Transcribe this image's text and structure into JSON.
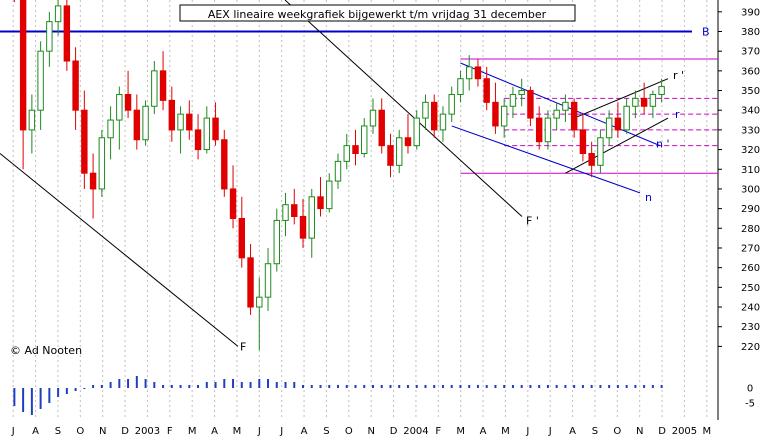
{
  "chart_data": {
    "type": "candlestick",
    "title": "AEX lineaire weekgrafiek bijgewerkt t/m vrijdag 31 december",
    "watermark": "© Ad Nooten",
    "colors": {
      "up": "#1f8a1f",
      "down": "#e00000",
      "background": "#ffffff",
      "grid": "#bfbfbf",
      "level_b": "#0000cc",
      "channel": "#0000cc",
      "magenta": "#cc00cc",
      "trend": "#000000",
      "volume": "#1f3fbf"
    },
    "y_axis": {
      "side": "right",
      "ylim": [
        208,
        396
      ],
      "ticks": [
        220,
        230,
        240,
        250,
        260,
        270,
        280,
        290,
        300,
        310,
        320,
        330,
        340,
        350,
        360,
        370,
        380,
        390
      ]
    },
    "x_axis": {
      "labels": [
        "J",
        "A",
        "S",
        "O",
        "N",
        "D",
        "2003",
        "F",
        "M",
        "A",
        "M",
        "J",
        "J",
        "A",
        "S",
        "O",
        "N",
        "D",
        "2004",
        "F",
        "M",
        "A",
        "M",
        "J",
        "J",
        "A",
        "S",
        "O",
        "N",
        "D",
        "2005",
        "M"
      ]
    },
    "candles": [
      {
        "o": 410,
        "h": 418,
        "l": 395,
        "c": 400
      },
      {
        "o": 400,
        "h": 404,
        "l": 310,
        "c": 330
      },
      {
        "o": 330,
        "h": 348,
        "l": 318,
        "c": 340
      },
      {
        "o": 340,
        "h": 375,
        "l": 330,
        "c": 370
      },
      {
        "o": 370,
        "h": 390,
        "l": 362,
        "c": 385
      },
      {
        "o": 385,
        "h": 397,
        "l": 378,
        "c": 393
      },
      {
        "o": 393,
        "h": 398,
        "l": 360,
        "c": 365
      },
      {
        "o": 365,
        "h": 372,
        "l": 330,
        "c": 340
      },
      {
        "o": 340,
        "h": 350,
        "l": 300,
        "c": 308
      },
      {
        "o": 308,
        "h": 318,
        "l": 285,
        "c": 300
      },
      {
        "o": 300,
        "h": 330,
        "l": 296,
        "c": 326
      },
      {
        "o": 326,
        "h": 342,
        "l": 315,
        "c": 335
      },
      {
        "o": 335,
        "h": 352,
        "l": 320,
        "c": 348
      },
      {
        "o": 348,
        "h": 360,
        "l": 336,
        "c": 340
      },
      {
        "o": 340,
        "h": 348,
        "l": 320,
        "c": 325
      },
      {
        "o": 325,
        "h": 345,
        "l": 322,
        "c": 342
      },
      {
        "o": 342,
        "h": 365,
        "l": 338,
        "c": 360
      },
      {
        "o": 360,
        "h": 370,
        "l": 340,
        "c": 345
      },
      {
        "o": 345,
        "h": 352,
        "l": 324,
        "c": 330
      },
      {
        "o": 330,
        "h": 342,
        "l": 318,
        "c": 338
      },
      {
        "o": 338,
        "h": 345,
        "l": 325,
        "c": 330
      },
      {
        "o": 330,
        "h": 338,
        "l": 315,
        "c": 320
      },
      {
        "o": 320,
        "h": 342,
        "l": 318,
        "c": 336
      },
      {
        "o": 336,
        "h": 344,
        "l": 322,
        "c": 325
      },
      {
        "o": 325,
        "h": 330,
        "l": 296,
        "c": 300
      },
      {
        "o": 300,
        "h": 312,
        "l": 280,
        "c": 285
      },
      {
        "o": 285,
        "h": 296,
        "l": 260,
        "c": 265
      },
      {
        "o": 265,
        "h": 272,
        "l": 236,
        "c": 240
      },
      {
        "o": 240,
        "h": 255,
        "l": 218,
        "c": 245
      },
      {
        "o": 245,
        "h": 270,
        "l": 238,
        "c": 262
      },
      {
        "o": 262,
        "h": 290,
        "l": 258,
        "c": 284
      },
      {
        "o": 284,
        "h": 298,
        "l": 276,
        "c": 292
      },
      {
        "o": 292,
        "h": 300,
        "l": 282,
        "c": 286
      },
      {
        "o": 286,
        "h": 295,
        "l": 270,
        "c": 275
      },
      {
        "o": 275,
        "h": 300,
        "l": 265,
        "c": 296
      },
      {
        "o": 296,
        "h": 306,
        "l": 286,
        "c": 290
      },
      {
        "o": 290,
        "h": 308,
        "l": 288,
        "c": 304
      },
      {
        "o": 304,
        "h": 318,
        "l": 300,
        "c": 314
      },
      {
        "o": 314,
        "h": 328,
        "l": 310,
        "c": 322
      },
      {
        "o": 322,
        "h": 330,
        "l": 312,
        "c": 318
      },
      {
        "o": 318,
        "h": 336,
        "l": 316,
        "c": 332
      },
      {
        "o": 332,
        "h": 346,
        "l": 328,
        "c": 340
      },
      {
        "o": 340,
        "h": 346,
        "l": 318,
        "c": 322
      },
      {
        "o": 322,
        "h": 328,
        "l": 306,
        "c": 312
      },
      {
        "o": 312,
        "h": 330,
        "l": 308,
        "c": 326
      },
      {
        "o": 326,
        "h": 338,
        "l": 318,
        "c": 322
      },
      {
        "o": 322,
        "h": 340,
        "l": 320,
        "c": 336
      },
      {
        "o": 336,
        "h": 348,
        "l": 330,
        "c": 344
      },
      {
        "o": 344,
        "h": 348,
        "l": 326,
        "c": 330
      },
      {
        "o": 330,
        "h": 342,
        "l": 324,
        "c": 338
      },
      {
        "o": 338,
        "h": 352,
        "l": 334,
        "c": 348
      },
      {
        "o": 348,
        "h": 360,
        "l": 344,
        "c": 356
      },
      {
        "o": 356,
        "h": 368,
        "l": 350,
        "c": 362
      },
      {
        "o": 362,
        "h": 366,
        "l": 352,
        "c": 356
      },
      {
        "o": 356,
        "h": 362,
        "l": 340,
        "c": 344
      },
      {
        "o": 344,
        "h": 354,
        "l": 328,
        "c": 332
      },
      {
        "o": 332,
        "h": 346,
        "l": 326,
        "c": 342
      },
      {
        "o": 342,
        "h": 352,
        "l": 336,
        "c": 348
      },
      {
        "o": 348,
        "h": 356,
        "l": 342,
        "c": 350
      },
      {
        "o": 350,
        "h": 352,
        "l": 332,
        "c": 336
      },
      {
        "o": 336,
        "h": 342,
        "l": 320,
        "c": 324
      },
      {
        "o": 324,
        "h": 340,
        "l": 320,
        "c": 336
      },
      {
        "o": 336,
        "h": 344,
        "l": 330,
        "c": 340
      },
      {
        "o": 340,
        "h": 348,
        "l": 334,
        "c": 344
      },
      {
        "o": 344,
        "h": 346,
        "l": 326,
        "c": 330
      },
      {
        "o": 330,
        "h": 338,
        "l": 314,
        "c": 318
      },
      {
        "o": 318,
        "h": 324,
        "l": 306,
        "c": 312
      },
      {
        "o": 312,
        "h": 330,
        "l": 308,
        "c": 326
      },
      {
        "o": 326,
        "h": 340,
        "l": 322,
        "c": 336
      },
      {
        "o": 336,
        "h": 344,
        "l": 326,
        "c": 330
      },
      {
        "o": 330,
        "h": 346,
        "l": 328,
        "c": 342
      },
      {
        "o": 342,
        "h": 350,
        "l": 336,
        "c": 346
      },
      {
        "o": 346,
        "h": 354,
        "l": 338,
        "c": 342
      },
      {
        "o": 342,
        "h": 350,
        "l": 336,
        "c": 348
      },
      {
        "o": 348,
        "h": 356,
        "l": 344,
        "c": 352
      }
    ],
    "volume": [
      -6,
      -8,
      -9,
      -7,
      -5,
      -3,
      -2,
      -1,
      0,
      1,
      1,
      2,
      3,
      3,
      4,
      3,
      2,
      1,
      1,
      1,
      1,
      1,
      2,
      2,
      3,
      3,
      2,
      2,
      3,
      3,
      2,
      2,
      2,
      1,
      1,
      1,
      1,
      1,
      1,
      1,
      1,
      1,
      1,
      1,
      1,
      1,
      1,
      1,
      1,
      1,
      1,
      1,
      1,
      1,
      1,
      1,
      1,
      1,
      1,
      1,
      1,
      1,
      1,
      1,
      1,
      1,
      1,
      1,
      1,
      1,
      1,
      1,
      1,
      1,
      1
    ],
    "annotations": [
      {
        "label": "B",
        "value": 380
      },
      {
        "label": "F",
        "value": 220
      },
      {
        "label": "F '",
        "value": 284
      },
      {
        "label": "r '",
        "value": 358
      },
      {
        "label": "r",
        "value": 338
      },
      {
        "label": "n '",
        "value": 323
      },
      {
        "label": "n",
        "value": 296
      }
    ]
  }
}
